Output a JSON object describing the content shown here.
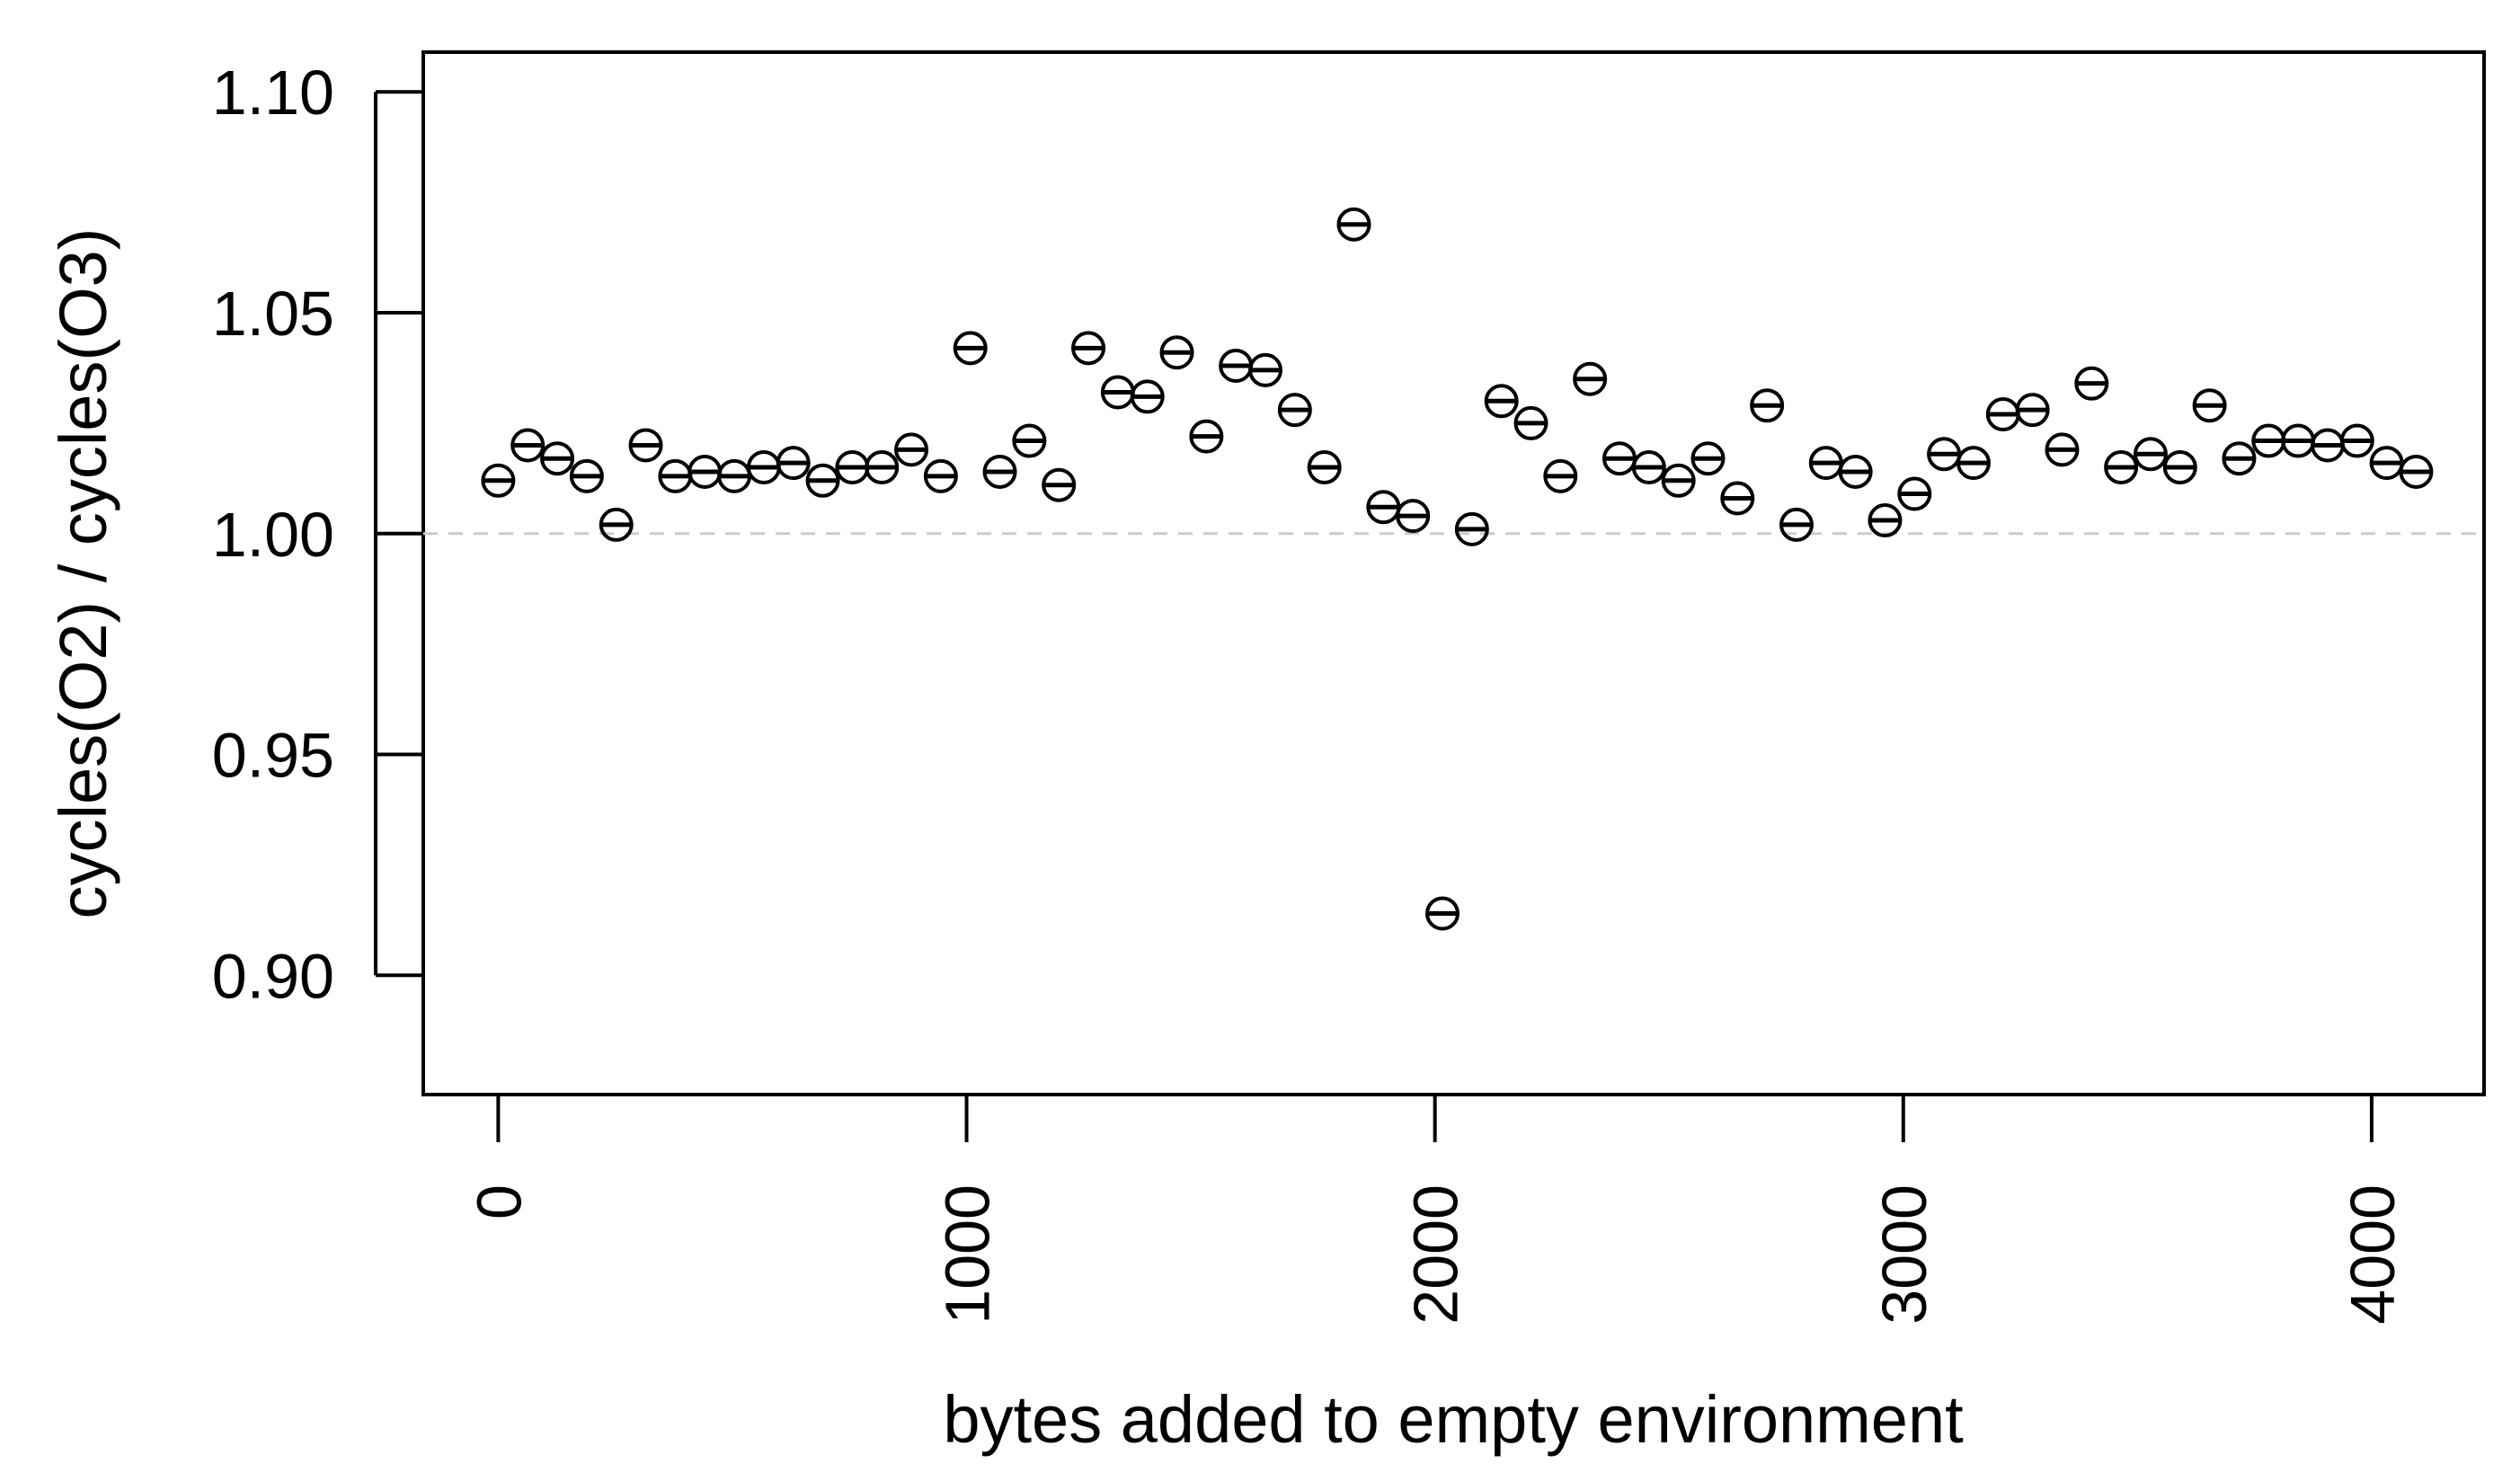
{
  "chart_data": {
    "type": "scatter",
    "title": "",
    "xlabel": "bytes added to empty environment",
    "ylabel": "cycles(O2) / cycles(O3)",
    "xlim": [
      -160,
      4240
    ],
    "ylim": [
      0.873,
      1.109
    ],
    "x_ticks": [
      0,
      1000,
      2000,
      3000,
      4000
    ],
    "x_tick_labels": [
      "0",
      "1000",
      "2000",
      "3000",
      "4000"
    ],
    "y_ticks": [
      0.9,
      0.95,
      1.0,
      1.05,
      1.1
    ],
    "y_tick_labels": [
      "0.90",
      "0.95",
      "1.00",
      "1.05",
      "1.10"
    ],
    "reference_line": 1.0,
    "reference_line_color": "#cccccc",
    "grid": false,
    "legend": "none",
    "marker": "open-circle-with-errorbar",
    "x": [
      0,
      63,
      126,
      189,
      252,
      315,
      378,
      441,
      504,
      567,
      630,
      693,
      756,
      819,
      882,
      945,
      1008,
      1071,
      1134,
      1197,
      1260,
      1323,
      1386,
      1449,
      1512,
      1575,
      1638,
      1701,
      1764,
      1827,
      1890,
      1953,
      2016,
      2079,
      2142,
      2205,
      2268,
      2331,
      2394,
      2457,
      2520,
      2583,
      2646,
      2709,
      2772,
      2835,
      2898,
      2961,
      3024,
      3087,
      3150,
      3213,
      3276,
      3339,
      3402,
      3465,
      3528,
      3591,
      3654,
      3717,
      3780,
      3843,
      3906,
      3969,
      4032,
      4095
    ],
    "y": [
      1.012,
      1.02,
      1.017,
      1.013,
      1.002,
      1.02,
      1.013,
      1.014,
      1.013,
      1.015,
      1.016,
      1.012,
      1.015,
      1.015,
      1.019,
      1.013,
      1.042,
      1.014,
      1.021,
      1.011,
      1.042,
      1.032,
      1.031,
      1.041,
      1.022,
      1.038,
      1.037,
      1.028,
      1.015,
      1.07,
      1.006,
      1.004,
      0.914,
      1.001,
      1.03,
      1.025,
      1.013,
      1.035,
      1.017,
      1.015,
      1.012,
      1.017,
      1.008,
      1.029,
      1.002,
      1.016,
      1.014,
      1.003,
      1.009,
      1.018,
      1.016,
      1.027,
      1.028,
      1.019,
      1.034,
      1.015,
      1.018,
      1.015,
      1.029,
      1.017,
      1.021,
      1.021,
      1.02,
      1.021,
      1.016,
      1.014
    ]
  }
}
